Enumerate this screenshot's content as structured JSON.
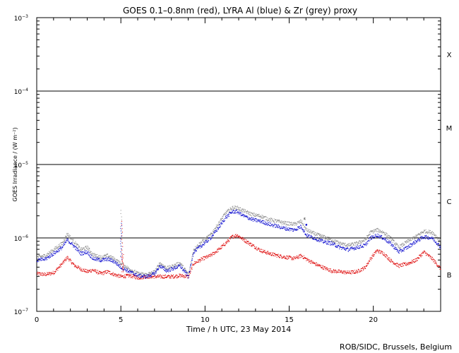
{
  "chart_data": {
    "type": "scatter",
    "title": "GOES 0.1–0.8nm (red), LYRA Al (blue) & Zr (grey) proxy",
    "xlabel": "Time / h UTC, 23 May 2014",
    "ylabel": "GOES Irradiance / (W m⁻²)",
    "credit": "ROB/SIDC, Brussels, Belgium",
    "xlim": [
      0,
      24
    ],
    "ylim": [
      1e-07,
      0.001
    ],
    "yscale": "log",
    "xticks": [
      0,
      5,
      10,
      15,
      20
    ],
    "yticks": [
      {
        "value": 1e-07,
        "mant": "10",
        "exp": "−7"
      },
      {
        "value": 1e-06,
        "mant": "10",
        "exp": "−6"
      },
      {
        "value": 1e-05,
        "mant": "10",
        "exp": "−5"
      },
      {
        "value": 0.0001,
        "mant": "10",
        "exp": "−4"
      },
      {
        "value": 0.001,
        "mant": "10",
        "exp": "−3"
      }
    ],
    "reference_lines": [
      1e-06,
      1e-05,
      0.0001
    ],
    "flare_classes": [
      {
        "label": "X",
        "value": 0.000316
      },
      {
        "label": "M",
        "value": 3.16e-05
      },
      {
        "label": "C",
        "value": 3.16e-06
      },
      {
        "label": "B",
        "value": 3.16e-07
      }
    ],
    "colors": {
      "goes": "#dd0000",
      "lyra_al": "#0000cc",
      "lyra_zr": "#888888",
      "axis": "#000000"
    },
    "series": [
      {
        "color": "#dd0000",
        "x": [
          0,
          0.5,
          1.0,
          1.5,
          1.8,
          2.2,
          2.6,
          3.0,
          3.3,
          3.8,
          4.2,
          4.6,
          5.0,
          5.5,
          6.0,
          6.5,
          7.0,
          7.3,
          7.7,
          8.0,
          8.5,
          9.0,
          9.3,
          9.8,
          10.3,
          10.8,
          11.2,
          11.6,
          11.9,
          12.3,
          12.8,
          13.3,
          13.8,
          14.3,
          14.8,
          15.3,
          15.7,
          16.0,
          16.5,
          17.0,
          17.5,
          18.0,
          18.5,
          19.0,
          19.5,
          19.8,
          20.2,
          20.6,
          21.0,
          21.5,
          22.0,
          22.5,
          23.0,
          23.5,
          24.0
        ],
        "y": [
          3.3e-07,
          3.2e-07,
          3.4e-07,
          4.5e-07,
          5.5e-07,
          4.3e-07,
          3.8e-07,
          3.5e-07,
          3.7e-07,
          3.3e-07,
          3.5e-07,
          3.2e-07,
          3e-07,
          3.1e-07,
          2.9e-07,
          3e-07,
          3e-07,
          3e-07,
          3e-07,
          3e-07,
          3.1e-07,
          3e-07,
          4.5e-07,
          5.2e-07,
          5.8e-07,
          7e-07,
          8.5e-07,
          1.05e-06,
          1.1e-06,
          9.5e-07,
          8e-07,
          6.8e-07,
          6.2e-07,
          5.8e-07,
          5.5e-07,
          5.3e-07,
          5.8e-07,
          5.2e-07,
          4.5e-07,
          4e-07,
          3.6e-07,
          3.5e-07,
          3.4e-07,
          3.5e-07,
          4e-07,
          5.2e-07,
          6.8e-07,
          6.2e-07,
          5e-07,
          4.2e-07,
          4.5e-07,
          5e-07,
          6.5e-07,
          5.2e-07,
          3.8e-07
        ]
      },
      {
        "color": "#0000cc",
        "x": [
          0,
          0.5,
          1.0,
          1.5,
          1.8,
          2.2,
          2.6,
          3.0,
          3.3,
          3.8,
          4.2,
          4.6,
          5.0,
          5.5,
          6.0,
          6.5,
          7.0,
          7.3,
          7.7,
          8.0,
          8.5,
          9.0,
          9.3,
          9.8,
          10.3,
          10.8,
          11.2,
          11.6,
          11.9,
          12.3,
          12.8,
          13.3,
          13.8,
          14.3,
          14.8,
          15.3,
          15.7,
          16.0,
          16.5,
          17.0,
          17.5,
          18.0,
          18.5,
          19.0,
          19.5,
          19.8,
          20.2,
          20.6,
          21.0,
          21.5,
          22.0,
          22.5,
          23.0,
          23.5,
          24.0
        ],
        "y": [
          5e-07,
          5.2e-07,
          6.2e-07,
          7.5e-07,
          9.5e-07,
          7.8e-07,
          6.2e-07,
          6.5e-07,
          5.3e-07,
          5e-07,
          5.2e-07,
          4.8e-07,
          4e-07,
          3.5e-07,
          3.1e-07,
          3e-07,
          3.3e-07,
          4.2e-07,
          3.6e-07,
          3.8e-07,
          4.2e-07,
          3e-07,
          6.5e-07,
          8e-07,
          1e-06,
          1.4e-06,
          1.9e-06,
          2.3e-06,
          2.3e-06,
          2e-06,
          1.8e-06,
          1.7e-06,
          1.55e-06,
          1.45e-06,
          1.35e-06,
          1.3e-06,
          1.45e-06,
          1.1e-06,
          1e-06,
          9e-07,
          8.5e-07,
          7.5e-07,
          7e-07,
          7.5e-07,
          8e-07,
          1e-06,
          1.1e-06,
          1e-06,
          8.5e-07,
          6.5e-07,
          7.5e-07,
          9e-07,
          1.05e-06,
          1e-06,
          7.5e-07
        ]
      },
      {
        "color": "#888888",
        "x": [
          0,
          0.5,
          1.0,
          1.5,
          1.8,
          2.2,
          2.6,
          3.0,
          3.3,
          3.8,
          4.2,
          4.6,
          5.0,
          5.5,
          6.0,
          6.5,
          7.0,
          7.3,
          7.7,
          8.0,
          8.5,
          9.0,
          9.3,
          9.8,
          10.3,
          10.8,
          11.2,
          11.6,
          11.9,
          12.3,
          12.8,
          13.3,
          13.8,
          14.3,
          14.8,
          15.3,
          15.7,
          16.0,
          16.5,
          17.0,
          17.5,
          18.0,
          18.5,
          19.0,
          19.5,
          19.8,
          20.2,
          20.6,
          21.0,
          21.5,
          22.0,
          22.5,
          23.0,
          23.5,
          24.0
        ],
        "y": [
          5.5e-07,
          5.8e-07,
          7e-07,
          8.5e-07,
          1.15e-06,
          9e-07,
          7e-07,
          7.5e-07,
          6e-07,
          5.5e-07,
          5.8e-07,
          5.2e-07,
          4.5e-07,
          3.8e-07,
          3.3e-07,
          3.2e-07,
          3.5e-07,
          4.6e-07,
          3.9e-07,
          4.1e-07,
          4.6e-07,
          3.2e-07,
          7e-07,
          9e-07,
          1.1e-06,
          1.6e-06,
          2.2e-06,
          2.6e-06,
          2.6e-06,
          2.35e-06,
          2.1e-06,
          2e-06,
          1.8e-06,
          1.7e-06,
          1.6e-06,
          1.55e-06,
          1.7e-06,
          1.3e-06,
          1.15e-06,
          1.05e-06,
          9.5e-07,
          8.5e-07,
          8e-07,
          8.5e-07,
          9.5e-07,
          1.2e-06,
          1.3e-06,
          1.2e-06,
          1e-06,
          7.5e-07,
          9e-07,
          1.05e-06,
          1.25e-06,
          1.2e-06,
          9e-07
        ]
      }
    ],
    "spikes": [
      {
        "series": 0,
        "x": 5.05,
        "y": 1.7e-06
      },
      {
        "series": 0,
        "x": 5.1,
        "y": 6e-07
      },
      {
        "series": 2,
        "x": 5.0,
        "y": 2.4e-06
      },
      {
        "series": 1,
        "x": 5.0,
        "y": 1.6e-06
      },
      {
        "series": 2,
        "x": 15.9,
        "y": 1.9e-06
      },
      {
        "series": 1,
        "x": 16.0,
        "y": 1.5e-06
      }
    ]
  }
}
